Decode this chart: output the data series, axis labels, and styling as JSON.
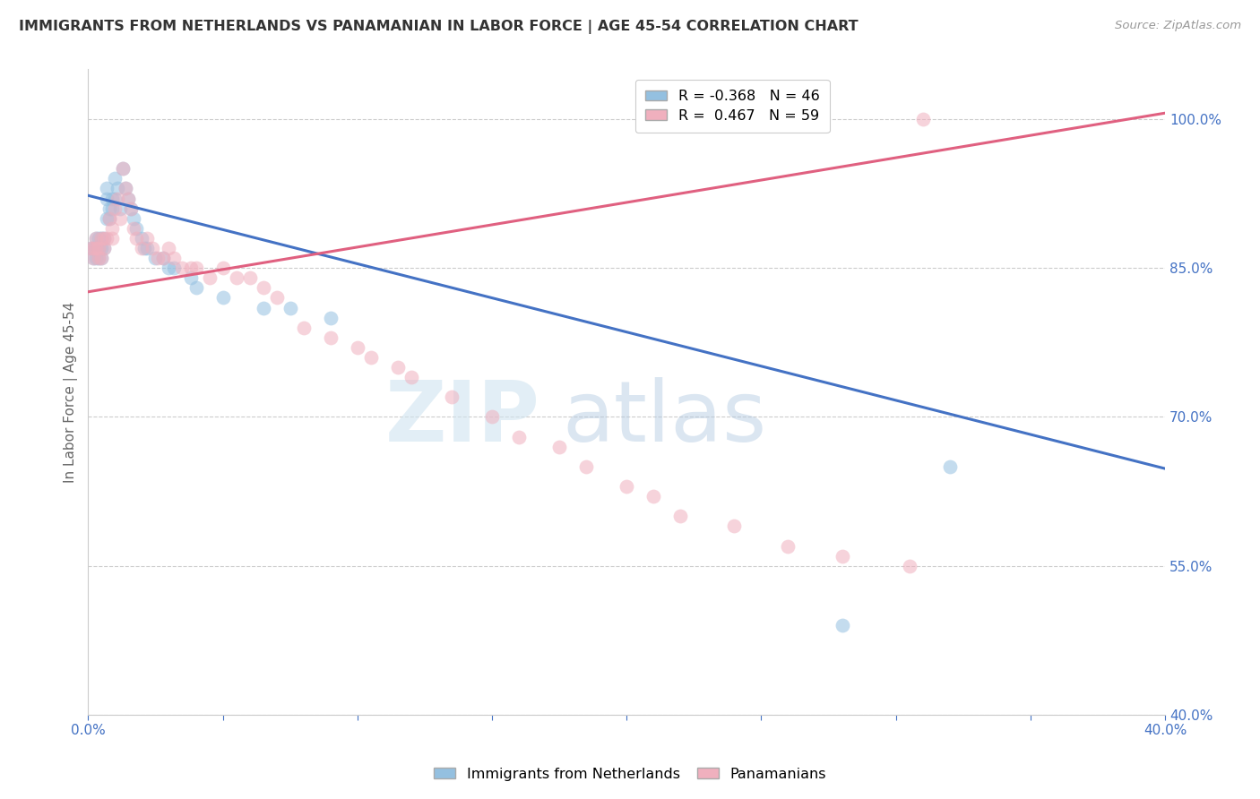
{
  "title": "IMMIGRANTS FROM NETHERLANDS VS PANAMANIAN IN LABOR FORCE | AGE 45-54 CORRELATION CHART",
  "source": "Source: ZipAtlas.com",
  "ylabel": "In Labor Force | Age 45-54",
  "xlim": [
    0.0,
    0.4
  ],
  "ylim": [
    0.4,
    1.05
  ],
  "yticks_right": [
    0.4,
    0.55,
    0.7,
    0.85,
    1.0
  ],
  "yticklabels_right": [
    "40.0%",
    "55.0%",
    "70.0%",
    "85.0%",
    "100.0%"
  ],
  "grid_color": "#cccccc",
  "background_color": "#ffffff",
  "watermark_zip": "ZIP",
  "watermark_atlas": "atlas",
  "blue_color": "#94c0e0",
  "pink_color": "#f0b0be",
  "blue_line_color": "#4472c4",
  "pink_line_color": "#e06080",
  "legend_r_blue": "-0.368",
  "legend_n_blue": "46",
  "legend_r_pink": "0.467",
  "legend_n_pink": "59",
  "blue_line_x0": 0.0,
  "blue_line_y0": 0.923,
  "blue_line_x1": 0.4,
  "blue_line_y1": 0.648,
  "pink_line_x0": 0.0,
  "pink_line_y0": 0.826,
  "pink_line_x1": 0.4,
  "pink_line_y1": 1.006,
  "blue_points_x": [
    0.001,
    0.002,
    0.002,
    0.003,
    0.003,
    0.003,
    0.004,
    0.004,
    0.004,
    0.005,
    0.005,
    0.005,
    0.006,
    0.006,
    0.007,
    0.007,
    0.007,
    0.008,
    0.008,
    0.009,
    0.009,
    0.01,
    0.01,
    0.011,
    0.012,
    0.013,
    0.014,
    0.015,
    0.016,
    0.017,
    0.018,
    0.02,
    0.021,
    0.022,
    0.025,
    0.028,
    0.03,
    0.032,
    0.038,
    0.04,
    0.05,
    0.065,
    0.075,
    0.09,
    0.28,
    0.32
  ],
  "blue_points_y": [
    0.87,
    0.87,
    0.86,
    0.88,
    0.87,
    0.86,
    0.88,
    0.87,
    0.86,
    0.88,
    0.87,
    0.86,
    0.88,
    0.87,
    0.93,
    0.92,
    0.9,
    0.91,
    0.9,
    0.92,
    0.91,
    0.94,
    0.92,
    0.93,
    0.91,
    0.95,
    0.93,
    0.92,
    0.91,
    0.9,
    0.89,
    0.88,
    0.87,
    0.87,
    0.86,
    0.86,
    0.85,
    0.85,
    0.84,
    0.83,
    0.82,
    0.81,
    0.81,
    0.8,
    0.49,
    0.65
  ],
  "pink_points_x": [
    0.001,
    0.002,
    0.002,
    0.003,
    0.003,
    0.004,
    0.004,
    0.005,
    0.005,
    0.006,
    0.006,
    0.007,
    0.008,
    0.009,
    0.009,
    0.01,
    0.011,
    0.012,
    0.013,
    0.014,
    0.015,
    0.016,
    0.017,
    0.018,
    0.02,
    0.022,
    0.024,
    0.026,
    0.028,
    0.03,
    0.032,
    0.035,
    0.038,
    0.04,
    0.045,
    0.05,
    0.055,
    0.06,
    0.065,
    0.07,
    0.08,
    0.09,
    0.1,
    0.105,
    0.115,
    0.12,
    0.135,
    0.15,
    0.16,
    0.175,
    0.185,
    0.2,
    0.21,
    0.22,
    0.24,
    0.26,
    0.28,
    0.305,
    0.31
  ],
  "pink_points_y": [
    0.87,
    0.87,
    0.86,
    0.88,
    0.87,
    0.87,
    0.86,
    0.88,
    0.86,
    0.88,
    0.87,
    0.88,
    0.9,
    0.89,
    0.88,
    0.91,
    0.92,
    0.9,
    0.95,
    0.93,
    0.92,
    0.91,
    0.89,
    0.88,
    0.87,
    0.88,
    0.87,
    0.86,
    0.86,
    0.87,
    0.86,
    0.85,
    0.85,
    0.85,
    0.84,
    0.85,
    0.84,
    0.84,
    0.83,
    0.82,
    0.79,
    0.78,
    0.77,
    0.76,
    0.75,
    0.74,
    0.72,
    0.7,
    0.68,
    0.67,
    0.65,
    0.63,
    0.62,
    0.6,
    0.59,
    0.57,
    0.56,
    0.55,
    1.0
  ]
}
